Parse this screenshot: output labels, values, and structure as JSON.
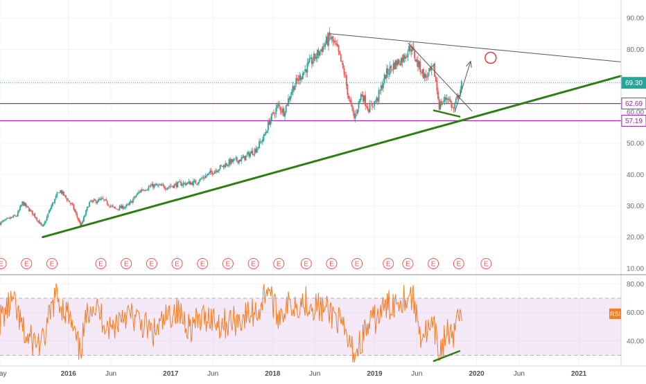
{
  "chart_data": [
    {
      "type": "candlestick",
      "title": "",
      "xlabel": "",
      "ylabel": "",
      "ylim": [
        8,
        94
      ],
      "x_range": [
        "2015-05-01",
        "2021-06-01"
      ],
      "y_ticks": [
        "90.00",
        "80.00",
        "70.00",
        "60.00",
        "50.00",
        "40.00",
        "30.00",
        "20.00",
        "10.00"
      ],
      "x_ticks": [
        {
          "date": "2015-05-01",
          "label": "May"
        },
        {
          "date": "2016-01-01",
          "label": "2016"
        },
        {
          "date": "2016-06-01",
          "label": "Jun"
        },
        {
          "date": "2017-01-01",
          "label": "2017"
        },
        {
          "date": "2017-06-01",
          "label": "Jun"
        },
        {
          "date": "2018-01-01",
          "label": "2018"
        },
        {
          "date": "2018-06-01",
          "label": "Jun"
        },
        {
          "date": "2019-01-01",
          "label": "2019"
        },
        {
          "date": "2019-06-01",
          "label": "Jun"
        },
        {
          "date": "2020-01-01",
          "label": "2020"
        },
        {
          "date": "2020-06-01",
          "label": "Jun"
        },
        {
          "date": "2021-01-01",
          "label": "2021"
        }
      ],
      "price_anchors": [
        [
          "2015-05-01",
          24.5
        ],
        [
          "2015-07-01",
          27
        ],
        [
          "2015-07-20",
          31
        ],
        [
          "2015-09-01",
          27
        ],
        [
          "2015-10-01",
          23
        ],
        [
          "2015-11-01",
          30
        ],
        [
          "2015-12-01",
          35
        ],
        [
          "2016-01-15",
          30
        ],
        [
          "2016-02-15",
          23.5
        ],
        [
          "2016-03-15",
          31
        ],
        [
          "2016-05-01",
          32
        ],
        [
          "2016-06-15",
          29
        ],
        [
          "2016-08-01",
          30
        ],
        [
          "2016-09-15",
          35
        ],
        [
          "2016-11-01",
          36.5
        ],
        [
          "2016-12-15",
          36
        ],
        [
          "2017-02-01",
          37
        ],
        [
          "2017-04-01",
          37.5
        ],
        [
          "2017-06-01",
          41
        ],
        [
          "2017-08-01",
          44
        ],
        [
          "2017-09-15",
          45
        ],
        [
          "2017-11-01",
          48
        ],
        [
          "2017-12-01",
          52
        ],
        [
          "2017-12-20",
          57
        ],
        [
          "2018-01-20",
          62
        ],
        [
          "2018-02-10",
          60
        ],
        [
          "2018-03-15",
          68
        ],
        [
          "2018-05-01",
          74
        ],
        [
          "2018-06-15",
          79
        ],
        [
          "2018-07-25",
          84
        ],
        [
          "2018-08-20",
          80
        ],
        [
          "2018-09-15",
          72
        ],
        [
          "2018-10-01",
          64
        ],
        [
          "2018-10-20",
          58
        ],
        [
          "2018-11-15",
          66
        ],
        [
          "2018-12-10",
          61
        ],
        [
          "2019-01-10",
          64
        ],
        [
          "2019-02-10",
          72
        ],
        [
          "2019-03-10",
          75
        ],
        [
          "2019-04-10",
          77
        ],
        [
          "2019-05-10",
          81
        ],
        [
          "2019-06-01",
          76
        ],
        [
          "2019-07-01",
          71
        ],
        [
          "2019-08-01",
          74
        ],
        [
          "2019-08-20",
          62
        ],
        [
          "2019-09-20",
          65
        ],
        [
          "2019-10-10",
          60.5
        ],
        [
          "2019-10-25",
          65
        ],
        [
          "2019-11-05",
          67.5
        ],
        [
          "2019-11-10",
          69.3
        ]
      ],
      "horizontal_levels": [
        {
          "value": 69.3,
          "label": "69.30",
          "style": "dotted",
          "color": "#26a69a"
        },
        {
          "value": 62.69,
          "label": "62.69",
          "style": "solid",
          "color": "#9c27b0"
        },
        {
          "value": 57.19,
          "label": "57.19",
          "style": "solid",
          "color": "#9c27b0"
        }
      ],
      "current_price": 69.3,
      "earnings_marker_label": "E",
      "earnings_dates": [
        "2015-05-05",
        "2015-08-04",
        "2015-11-03",
        "2016-04-26",
        "2016-07-26",
        "2016-10-25",
        "2017-01-24",
        "2017-04-25",
        "2017-07-25",
        "2017-10-24",
        "2018-01-23",
        "2018-05-01",
        "2018-07-31",
        "2018-10-30",
        "2019-02-19",
        "2019-04-30",
        "2019-07-30",
        "2019-10-29",
        "2020-02-04"
      ],
      "trendlines": [
        {
          "name": "support",
          "color": "#2e7d14",
          "width": 3,
          "points": [
            [
              "2015-10-01",
              20
            ],
            [
              "2021-06-01",
              71.5
            ]
          ]
        },
        {
          "name": "resistance",
          "color": "#555555",
          "width": 1,
          "points": [
            [
              "2018-07-25",
              85
            ],
            [
              "2021-06-01",
              76
            ]
          ]
        },
        {
          "name": "wedge-upper",
          "color": "#555555",
          "width": 1,
          "points": [
            [
              "2019-05-01",
              82
            ],
            [
              "2019-12-15",
              60.3
            ]
          ]
        },
        {
          "name": "projection-arrow",
          "color": "#555555",
          "width": 1,
          "arrow": true,
          "points": [
            [
              "2019-10-15",
              60
            ],
            [
              "2019-12-10",
              76
            ]
          ]
        },
        {
          "name": "price-low-divergence",
          "color": "#2e7d14",
          "width": 2.5,
          "points": [
            [
              "2019-08-01",
              60.5
            ],
            [
              "2019-11-01",
              58.5
            ]
          ]
        }
      ],
      "target_marker": {
        "date": "2020-02-20",
        "value": 77.3,
        "color": "#e53935"
      }
    },
    {
      "type": "line",
      "title": "",
      "xlabel": "",
      "ylabel": "",
      "series": [
        {
          "name": "RSI",
          "color": "#f57c1f"
        }
      ],
      "legend_label": "RSI",
      "ylim": [
        23,
        86
      ],
      "y_ticks": [
        "80.00",
        "60.00",
        "40.00"
      ],
      "band": [
        30,
        70
      ],
      "rsi_anchors": [
        [
          "2015-05-01",
          55
        ],
        [
          "2015-06-15",
          68
        ],
        [
          "2015-08-01",
          42
        ],
        [
          "2015-10-01",
          38
        ],
        [
          "2015-11-15",
          72
        ],
        [
          "2016-01-01",
          58
        ],
        [
          "2016-02-10",
          32
        ],
        [
          "2016-03-20",
          68
        ],
        [
          "2016-06-01",
          48
        ],
        [
          "2016-07-15",
          60
        ],
        [
          "2016-09-01",
          55
        ],
        [
          "2016-11-01",
          45
        ],
        [
          "2017-01-15",
          62
        ],
        [
          "2017-03-15",
          50
        ],
        [
          "2017-05-15",
          58
        ],
        [
          "2017-07-01",
          52
        ],
        [
          "2017-09-01",
          55
        ],
        [
          "2017-11-15",
          62
        ],
        [
          "2017-12-15",
          80
        ],
        [
          "2018-01-15",
          58
        ],
        [
          "2018-03-01",
          65
        ],
        [
          "2018-05-01",
          68
        ],
        [
          "2018-07-01",
          62
        ],
        [
          "2018-08-15",
          58
        ],
        [
          "2018-10-20",
          30
        ],
        [
          "2018-12-01",
          48
        ],
        [
          "2019-02-01",
          62
        ],
        [
          "2019-04-01",
          70
        ],
        [
          "2019-05-15",
          72
        ],
        [
          "2019-06-15",
          45
        ],
        [
          "2019-08-01",
          48
        ],
        [
          "2019-08-20",
          31
        ],
        [
          "2019-09-20",
          48
        ],
        [
          "2019-10-10",
          36
        ],
        [
          "2019-10-25",
          68
        ],
        [
          "2019-11-10",
          58
        ]
      ],
      "trendlines": [
        {
          "name": "rsi-divergence",
          "color": "#2e7d14",
          "width": 2.5,
          "points": [
            [
              "2019-08-01",
              26
            ],
            [
              "2019-11-01",
              33
            ]
          ]
        }
      ]
    }
  ]
}
